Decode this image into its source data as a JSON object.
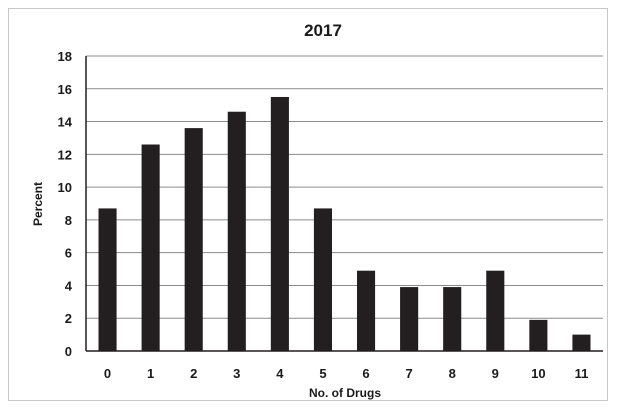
{
  "chart_data": {
    "type": "bar",
    "title": "2017",
    "xlabel": "No. of Drugs",
    "ylabel": "Percent",
    "categories": [
      "0",
      "1",
      "2",
      "3",
      "4",
      "5",
      "6",
      "7",
      "8",
      "9",
      "10",
      "11"
    ],
    "values": [
      8.7,
      12.6,
      13.6,
      14.6,
      15.5,
      8.7,
      4.9,
      3.9,
      3.9,
      4.9,
      1.9,
      1.0
    ],
    "ylim": [
      0,
      18
    ],
    "yticks": [
      "0",
      "2",
      "4",
      "6",
      "8",
      "10",
      "12",
      "14",
      "16",
      "18"
    ],
    "grid": true,
    "colors": {
      "bar": "#231f20",
      "grid": "#8c8c8c",
      "axis": "#231f20"
    }
  }
}
